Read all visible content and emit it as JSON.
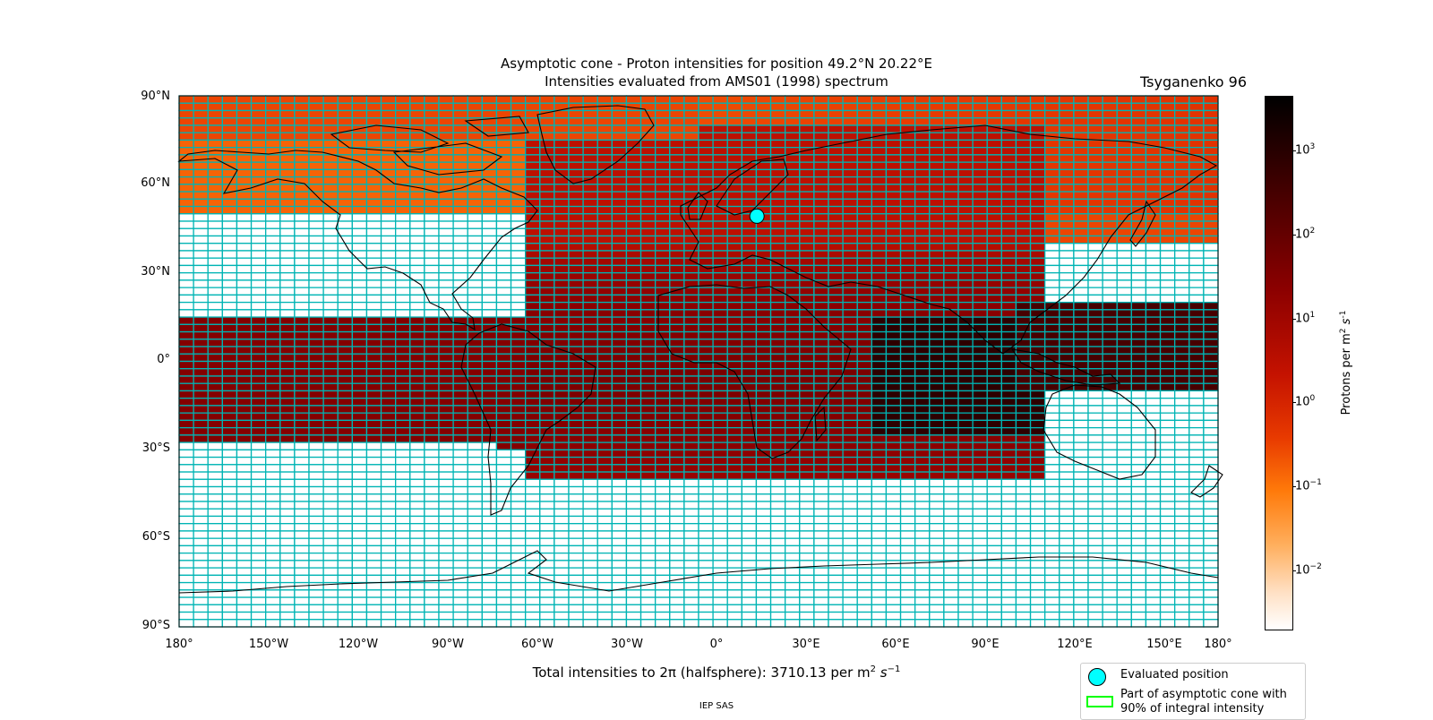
{
  "title_line1": "Asymptotic cone - Proton intensities for position 49.2°N 20.22°E",
  "title_line2": "Intensities evaluated from AMS01 (1998) spectrum",
  "model": "Tsyganenko 96",
  "lat_ticks": [
    "90°N",
    "60°N",
    "30°N",
    "0°",
    "30°S",
    "60°S",
    "90°S"
  ],
  "lon_ticks": [
    "180°",
    "150°W",
    "120°W",
    "90°W",
    "60°W",
    "30°W",
    "0°",
    "30°E",
    "60°E",
    "90°E",
    "120°E",
    "150°E",
    "180°"
  ],
  "colorbar": {
    "label": "Protons per m",
    "label_exp": "2",
    "label_unit": "s",
    "label_unit_exp": "-1",
    "ticks": [
      {
        "base": "10",
        "exp": "3",
        "value": 1000
      },
      {
        "base": "10",
        "exp": "2",
        "value": 100
      },
      {
        "base": "10",
        "exp": "1",
        "value": 10
      },
      {
        "base": "10",
        "exp": "0",
        "value": 1
      },
      {
        "base": "10",
        "exp": "−1",
        "value": 0.1
      },
      {
        "base": "10",
        "exp": "−2",
        "value": 0.01
      }
    ],
    "range": [
      0.002,
      4500
    ],
    "scale": "log",
    "colormap": "gist_heat_r"
  },
  "total_text": "Total intensities to 2π (halfsphere): 3710.13 per m",
  "total_exp": "2",
  "total_unit": "s",
  "total_unit_exp": "−1",
  "credit": "IEP SAS",
  "legend": [
    {
      "label": "Evaluated position",
      "symbol": "cyan-circle"
    },
    {
      "label": "Part of asymptotic cone with",
      "label2": "90% of integral intensity",
      "symbol": "green-rectangle"
    }
  ],
  "evaluated_position": {
    "lat": 49.2,
    "lon": 20.22,
    "color": "#00ffff"
  },
  "colors": {
    "grid": "#00b4b4",
    "cone_outline": "#00ff00",
    "marker": "#00ffff"
  },
  "map": {
    "projection": "PlateCarree",
    "lon_range": [
      -180,
      180
    ],
    "lat_range": [
      -90,
      90
    ],
    "cell_lon": 5,
    "cell_lat": 2.5
  }
}
